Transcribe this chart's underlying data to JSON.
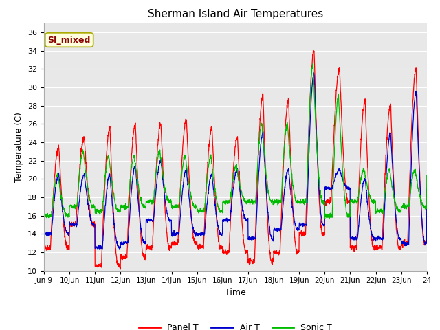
{
  "title": "Sherman Island Air Temperatures",
  "xlabel": "Time",
  "ylabel": "Temperature (C)",
  "ylim": [
    10,
    37
  ],
  "yticks": [
    10,
    12,
    14,
    16,
    18,
    20,
    22,
    24,
    26,
    28,
    30,
    32,
    34,
    36
  ],
  "annotation": "SI_mixed",
  "annotation_color": "#8B0000",
  "annotation_bg": "#FFFFDD",
  "plot_bg": "#E8E8E8",
  "line_colors": {
    "panel": "#FF0000",
    "air": "#0000CC",
    "sonic": "#00BB00"
  },
  "legend_labels": [
    "Panel T",
    "Air T",
    "Sonic T"
  ],
  "xtick_positions": [
    0,
    24,
    48,
    72,
    96,
    120,
    144,
    168,
    192,
    216,
    240,
    264,
    288,
    312,
    336,
    360
  ],
  "xtick_labels": [
    "Jun 9",
    "10Jun",
    "11Jun",
    "12Jun",
    "13Jun",
    "14Jun",
    "15Jun",
    "16Jun",
    "17Jun",
    "18Jun",
    "19Jun",
    "20Jun",
    "21Jun",
    "22Jun",
    "23Jun",
    "24"
  ],
  "panel_min": [
    12.5,
    15.0,
    10.5,
    11.5,
    12.5,
    13.0,
    12.5,
    12.0,
    11.0,
    12.0,
    14.0,
    17.5,
    12.5,
    12.5,
    13.0,
    14.0
  ],
  "panel_max": [
    23.5,
    24.5,
    25.5,
    26.0,
    26.0,
    26.5,
    25.5,
    24.5,
    29.0,
    28.5,
    34.0,
    32.0,
    28.5,
    28.0,
    32.0,
    17.0
  ],
  "air_min": [
    14.0,
    15.0,
    12.5,
    13.0,
    15.5,
    14.0,
    14.0,
    15.5,
    13.5,
    14.5,
    15.0,
    19.0,
    13.5,
    13.5,
    13.0,
    19.0
  ],
  "air_max": [
    20.5,
    20.5,
    20.5,
    21.5,
    22.0,
    21.0,
    20.5,
    21.0,
    25.0,
    21.0,
    31.5,
    21.0,
    20.0,
    25.0,
    29.5,
    19.5
  ],
  "sonic_min": [
    16.0,
    17.0,
    16.5,
    17.0,
    17.5,
    17.0,
    16.5,
    17.5,
    17.5,
    17.5,
    17.5,
    16.0,
    17.5,
    16.5,
    17.0,
    20.5
  ],
  "sonic_max": [
    20.5,
    23.0,
    22.5,
    22.5,
    23.0,
    22.5,
    22.5,
    21.5,
    26.0,
    26.0,
    32.5,
    29.0,
    21.0,
    21.0,
    21.0,
    20.5
  ],
  "figsize": [
    6.4,
    4.8
  ],
  "dpi": 100
}
